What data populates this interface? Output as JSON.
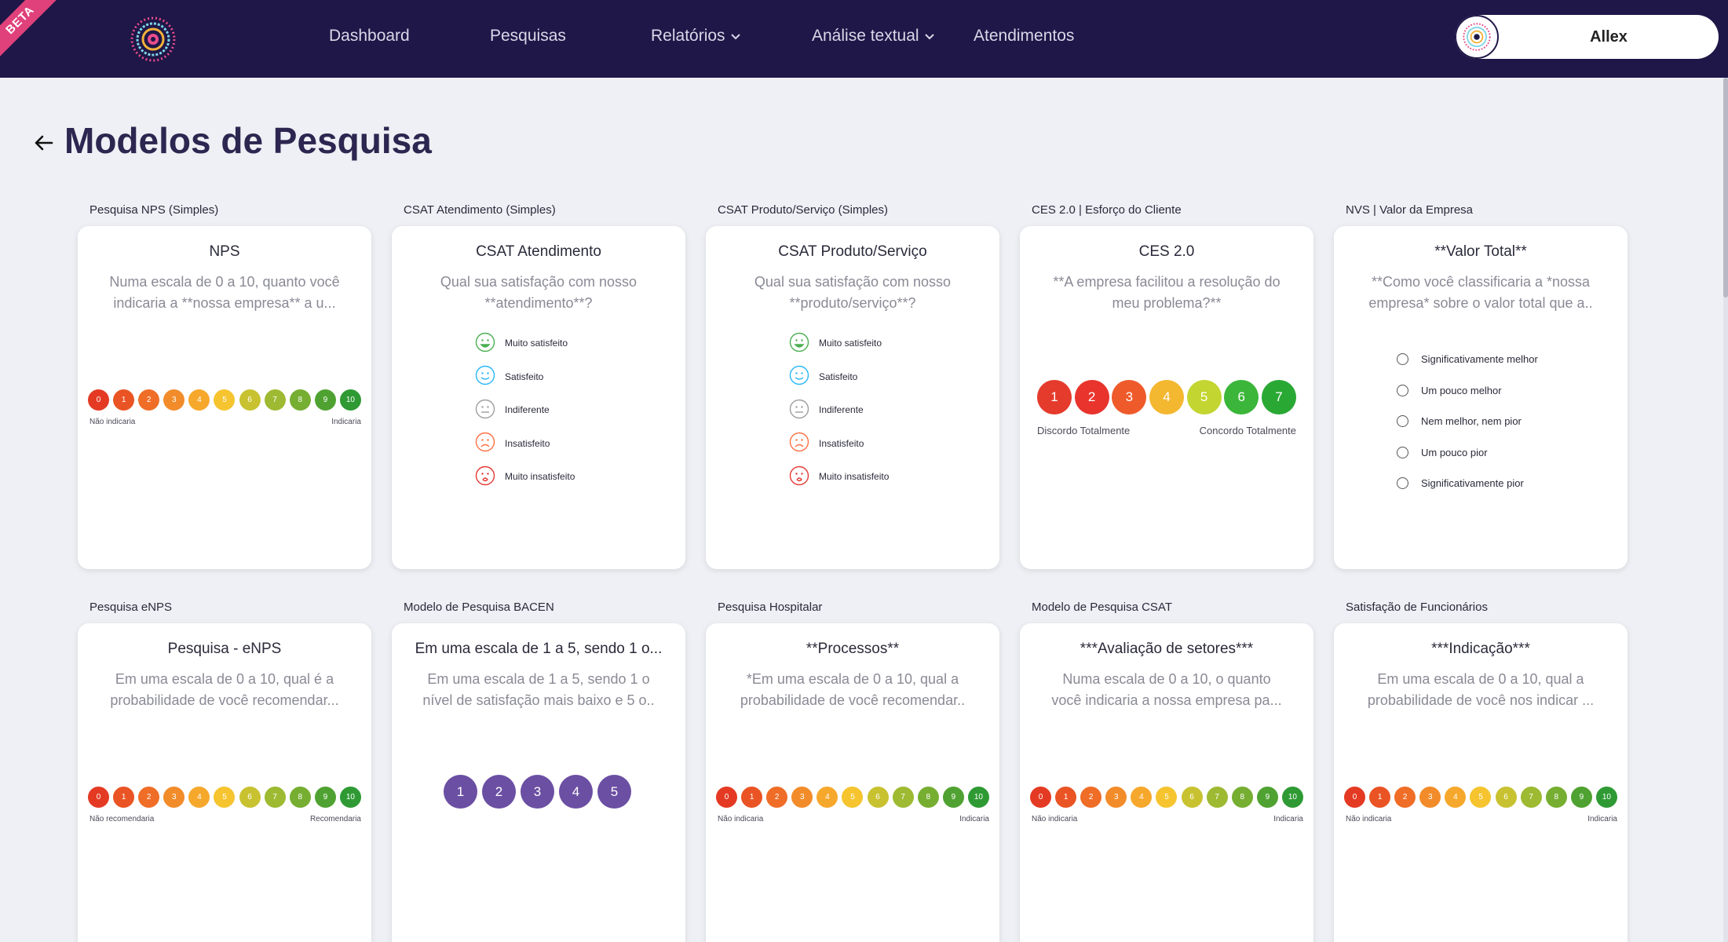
{
  "nav": {
    "badge": "BETA",
    "items": [
      "Dashboard",
      "Pesquisas",
      "Relatórios",
      "Análise textual",
      "Atendimentos"
    ],
    "user_name": "Allex"
  },
  "page": {
    "title": "Modelos de Pesquisa"
  },
  "colors": {
    "nav_bg": "#1f1748",
    "nps": [
      "#e43a23",
      "#ea5424",
      "#ef6d27",
      "#f28c2a",
      "#f6a82c",
      "#f5c42f",
      "#c8c231",
      "#9dba32",
      "#76ae32",
      "#4fa231",
      "#2f9a34"
    ],
    "ces": [
      "#e53b2c",
      "#e8342d",
      "#ef5a2b",
      "#f4b730",
      "#c3d530",
      "#3bb63a",
      "#2aa834"
    ],
    "bacen": "#6b4fa3"
  },
  "scales": {
    "nps": [
      "0",
      "1",
      "2",
      "3",
      "4",
      "5",
      "6",
      "7",
      "8",
      "9",
      "10"
    ],
    "ces": [
      "1",
      "2",
      "3",
      "4",
      "5",
      "6",
      "7"
    ],
    "bacen": [
      "1",
      "2",
      "3",
      "4",
      "5"
    ]
  },
  "csat_options": [
    "Muito satisfeito",
    "Satisfeito",
    "Indiferente",
    "Insatisfeito",
    "Muito insatisfeito"
  ],
  "nvs_options": [
    "Significativamente melhor",
    "Um pouco melhor",
    "Nem melhor, nem pior",
    "Um pouco pior",
    "Significativamente pior"
  ],
  "cards": [
    {
      "label": "Pesquisa NPS (Simples)",
      "title": "NPS",
      "desc": "Numa escala de 0 a 10, quanto você indicaria a **nossa empresa** a u...",
      "low": "Não indicaria",
      "high": "Indicaria"
    },
    {
      "label": "CSAT Atendimento (Simples)",
      "title": "CSAT Atendimento",
      "desc": "Qual sua satisfação com nosso **atendimento**?"
    },
    {
      "label": "CSAT Produto/Serviço (Simples)",
      "title": "CSAT Produto/Serviço",
      "desc": "Qual sua satisfação com nosso **produto/serviço**?"
    },
    {
      "label": "CES 2.0 | Esforço do Cliente",
      "title": "CES 2.0",
      "desc": "**A empresa facilitou a resolução do meu problema?**",
      "low": "Discordo Totalmente",
      "high": "Concordo Totalmente"
    },
    {
      "label": "NVS | Valor da Empresa",
      "title": "**Valor Total**",
      "desc": "**Como você classificaria a *nossa empresa* sobre o valor total que a.."
    },
    {
      "label": "Pesquisa eNPS",
      "title": "Pesquisa - eNPS",
      "desc": "Em uma escala de 0 a 10, qual é a probabilidade de você recomendar...",
      "low": "Não recomendaria",
      "high": "Recomendaria"
    },
    {
      "label": "Modelo de Pesquisa BACEN",
      "title": "Em uma escala de 1 a 5, sendo 1 o...",
      "desc": "Em uma escala de 1 a 5, sendo 1 o nível de satisfação mais baixo e 5 o.."
    },
    {
      "label": "Pesquisa Hospitalar",
      "title": "**Processos**",
      "desc": "*Em uma escala de 0 a 10, qual a probabilidade de você recomendar..",
      "low": "Não indicaria",
      "high": "Indicaria"
    },
    {
      "label": "Modelo de Pesquisa CSAT",
      "title": "***Avaliação de setores***",
      "desc": "Numa escala de 0 a 10, o quanto você indicaria a nossa empresa pa...",
      "low": "Não indicaria",
      "high": "Indicaria"
    },
    {
      "label": "Satisfação de Funcionários",
      "title": "***Indicação***",
      "desc": "Em uma escala de 0 a 10, qual a probabilidade de você nos indicar ...",
      "low": "Não indicaria",
      "high": "Indicaria"
    }
  ]
}
